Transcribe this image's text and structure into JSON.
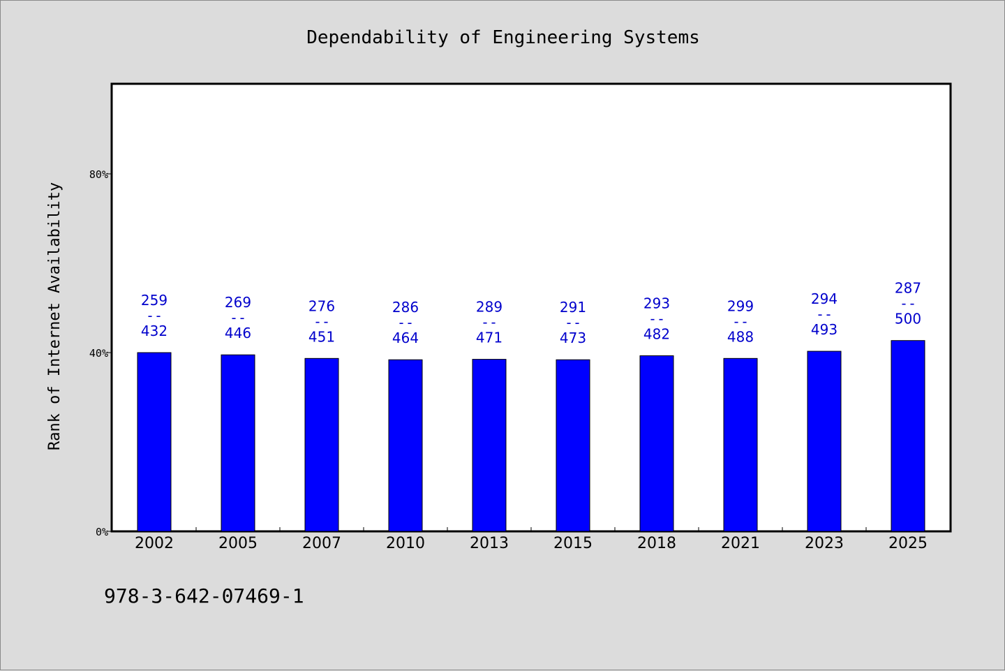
{
  "chart_data": {
    "type": "bar",
    "title": "Dependability of Engineering Systems",
    "ylabel": "Rank of Internet Availability",
    "xlabel": "",
    "categories": [
      "2002",
      "2005",
      "2007",
      "2010",
      "2013",
      "2015",
      "2018",
      "2021",
      "2023",
      "2025"
    ],
    "values": [
      40.0,
      39.5,
      38.7,
      38.4,
      38.5,
      38.4,
      39.3,
      38.7,
      40.3,
      42.7
    ],
    "annotations_top": [
      "259",
      "269",
      "276",
      "286",
      "289",
      "291",
      "293",
      "299",
      "294",
      "287"
    ],
    "annotations_bottom": [
      "432",
      "446",
      "451",
      "464",
      "471",
      "473",
      "482",
      "488",
      "493",
      "500"
    ],
    "annotation_separator": "--",
    "ylim": [
      0,
      100
    ],
    "yticks": [
      0,
      40,
      80
    ],
    "ytick_labels": [
      "0%",
      "40%",
      "80%"
    ],
    "grid": false,
    "legend": "none",
    "colors": {
      "bar": "#0000ff",
      "annotation": "#0000cc",
      "plot_bg": "#ffffff",
      "page_bg": "#dcdcdc"
    }
  },
  "footer_code": "978-3-642-07469-1"
}
